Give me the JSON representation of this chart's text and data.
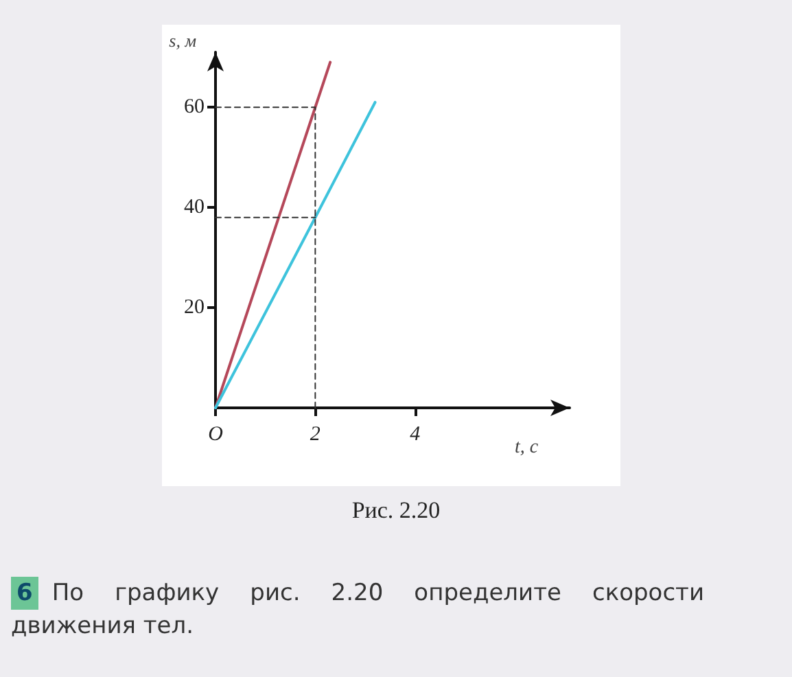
{
  "chart_data": {
    "type": "line",
    "xlabel": "t, с",
    "ylabel": "s, м",
    "xlim": [
      0,
      7.1
    ],
    "ylim": [
      0,
      71
    ],
    "xticks": [
      {
        "value": 0,
        "label": "O"
      },
      2,
      4
    ],
    "yticks": [
      20,
      40,
      60
    ],
    "grid": false,
    "marker": "none",
    "series": [
      {
        "color": "#b5485a",
        "x": [
          0,
          2,
          2.3
        ],
        "values": [
          0,
          60,
          69
        ]
      },
      {
        "color": "#3ec3dc",
        "x": [
          0,
          2,
          3.2
        ],
        "values": [
          0,
          38,
          61
        ]
      },
      {
        "color": "#333333",
        "line_style": "dashed",
        "x": [
          0,
          2
        ],
        "values": [
          60,
          60
        ]
      },
      {
        "color": "#333333",
        "line_style": "dashed",
        "x": [
          0,
          2
        ],
        "values": [
          38,
          38
        ]
      },
      {
        "color": "#333333",
        "line_style": "dashed",
        "x": [
          2,
          2
        ],
        "values": [
          0,
          60
        ]
      }
    ],
    "annotations": [
      "Рис. 2.20",
      "6",
      "По графику рис. 2.20 определите скорости движения тел."
    ]
  }
}
